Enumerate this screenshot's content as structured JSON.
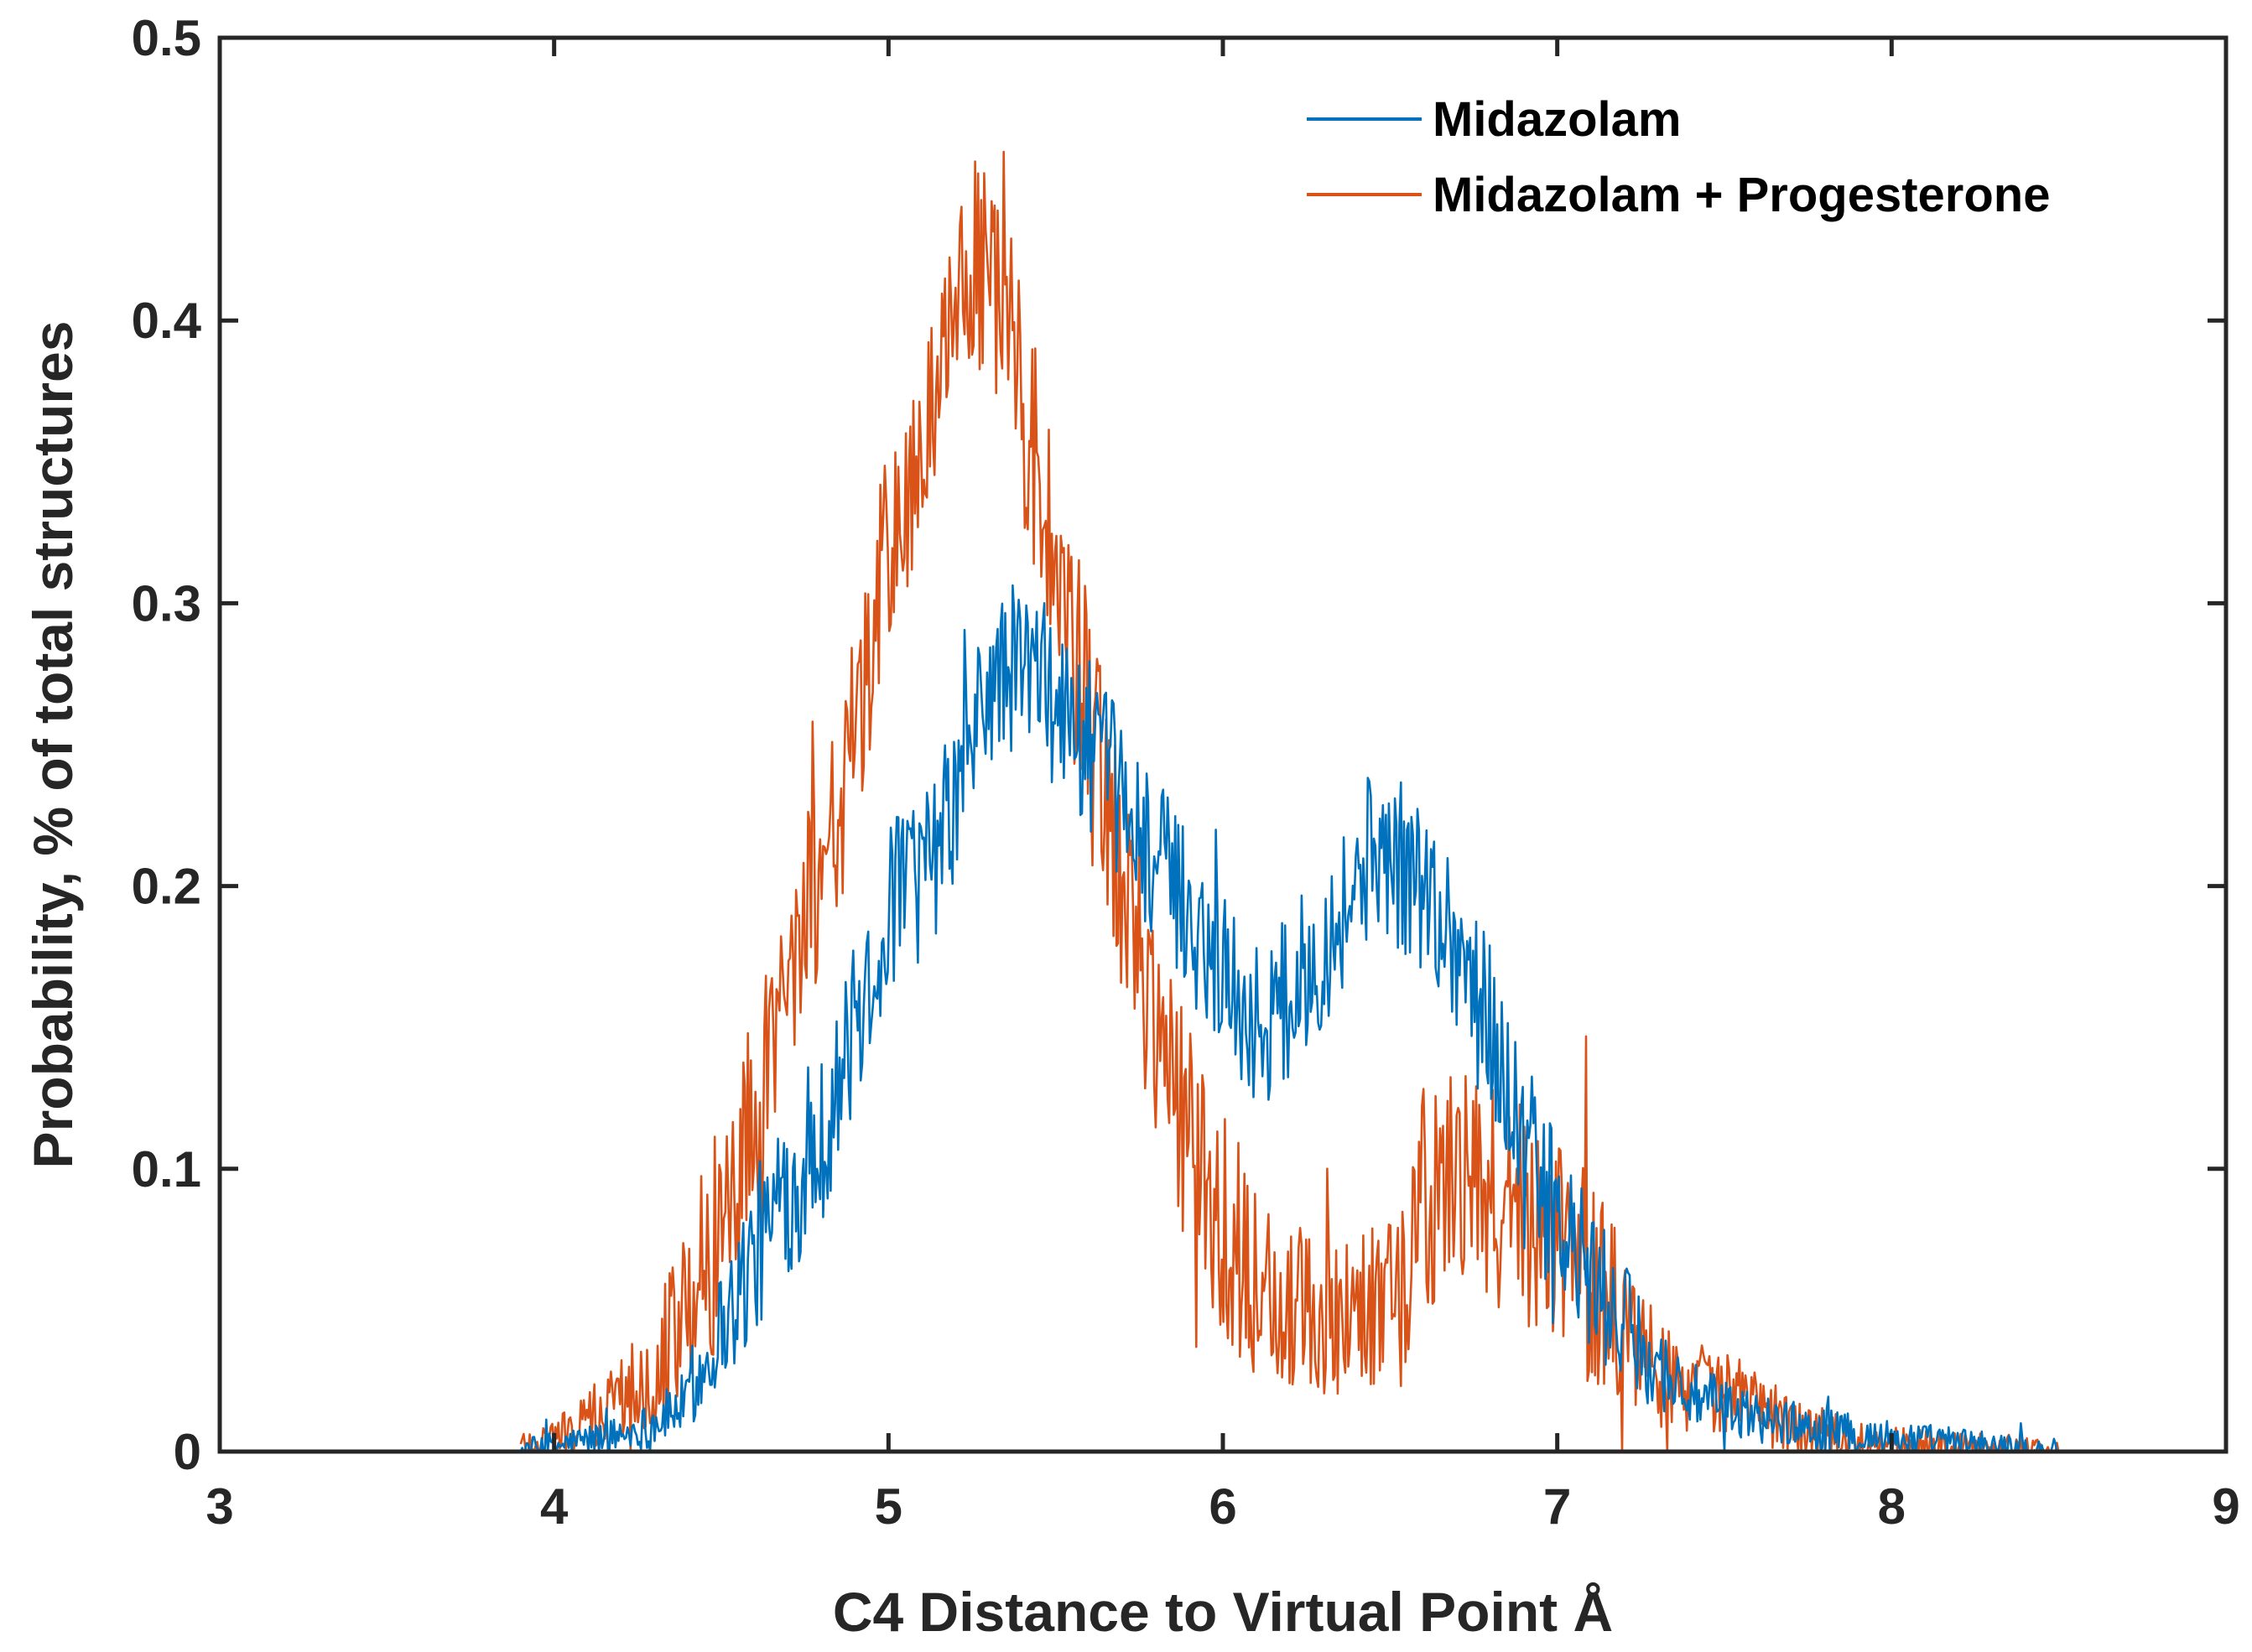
{
  "chart_data": {
    "type": "line",
    "title": "",
    "xlabel": "C4 Distance to Virtual Point Å",
    "ylabel": "Probability, % of total structures",
    "xlim": [
      3,
      9
    ],
    "ylim": [
      0,
      0.5
    ],
    "xticks": [
      3,
      4,
      5,
      6,
      7,
      8,
      9
    ],
    "yticks": [
      0,
      0.1,
      0.2,
      0.3,
      0.4,
      0.5
    ],
    "xtick_labels": [
      "3",
      "4",
      "5",
      "6",
      "7",
      "8",
      "9"
    ],
    "ytick_labels": [
      "0",
      "0.1",
      "0.2",
      "0.3",
      "0.4",
      "0.5"
    ],
    "grid": false,
    "legend_position": "top-right",
    "series": [
      {
        "name": "Midazolam",
        "color": "#0072BD",
        "x": [
          3.9,
          4.0,
          4.1,
          4.2,
          4.3,
          4.4,
          4.45,
          4.5,
          4.55,
          4.6,
          4.7,
          4.8,
          4.9,
          5.0,
          5.05,
          5.1,
          5.2,
          5.3,
          5.4,
          5.5,
          5.6,
          5.7,
          5.8,
          5.9,
          6.0,
          6.1,
          6.2,
          6.3,
          6.4,
          6.45,
          6.5,
          6.6,
          6.7,
          6.8,
          6.9,
          7.0,
          7.1,
          7.2,
          7.3,
          7.4,
          7.5,
          7.6,
          7.7,
          7.8,
          7.9,
          8.0,
          8.1,
          8.2,
          8.3,
          8.4,
          8.5
        ],
        "y": [
          0.0,
          0.002,
          0.004,
          0.006,
          0.01,
          0.018,
          0.03,
          0.045,
          0.055,
          0.07,
          0.09,
          0.11,
          0.15,
          0.19,
          0.205,
          0.2,
          0.23,
          0.27,
          0.28,
          0.265,
          0.25,
          0.23,
          0.21,
          0.19,
          0.17,
          0.15,
          0.16,
          0.18,
          0.2,
          0.215,
          0.21,
          0.2,
          0.18,
          0.15,
          0.11,
          0.08,
          0.06,
          0.045,
          0.03,
          0.02,
          0.015,
          0.012,
          0.01,
          0.008,
          0.006,
          0.005,
          0.004,
          0.003,
          0.002,
          0.001,
          0.0
        ],
        "noise": 0.03
      },
      {
        "name": "Midazolam + Progesterone",
        "color": "#D95319",
        "x": [
          3.9,
          4.0,
          4.1,
          4.2,
          4.3,
          4.4,
          4.5,
          4.6,
          4.7,
          4.8,
          4.9,
          5.0,
          5.1,
          5.2,
          5.25,
          5.3,
          5.35,
          5.4,
          5.5,
          5.6,
          5.7,
          5.8,
          5.9,
          6.0,
          6.1,
          6.2,
          6.3,
          6.4,
          6.5,
          6.6,
          6.7,
          6.8,
          6.9,
          7.0,
          7.1,
          7.2,
          7.3,
          7.4,
          7.5,
          7.6,
          7.7,
          7.8,
          7.9,
          8.0,
          8.1,
          8.2,
          8.3,
          8.4,
          8.5
        ],
        "y": [
          0.002,
          0.005,
          0.01,
          0.02,
          0.03,
          0.05,
          0.08,
          0.12,
          0.17,
          0.21,
          0.25,
          0.32,
          0.35,
          0.4,
          0.42,
          0.41,
          0.4,
          0.37,
          0.31,
          0.26,
          0.2,
          0.15,
          0.11,
          0.08,
          0.06,
          0.05,
          0.048,
          0.05,
          0.055,
          0.09,
          0.095,
          0.09,
          0.085,
          0.08,
          0.06,
          0.045,
          0.03,
          0.025,
          0.02,
          0.015,
          0.01,
          0.006,
          0.004,
          0.002,
          0.001,
          0.001,
          0.0,
          0.0,
          0.0
        ],
        "noise": 0.04
      }
    ]
  }
}
